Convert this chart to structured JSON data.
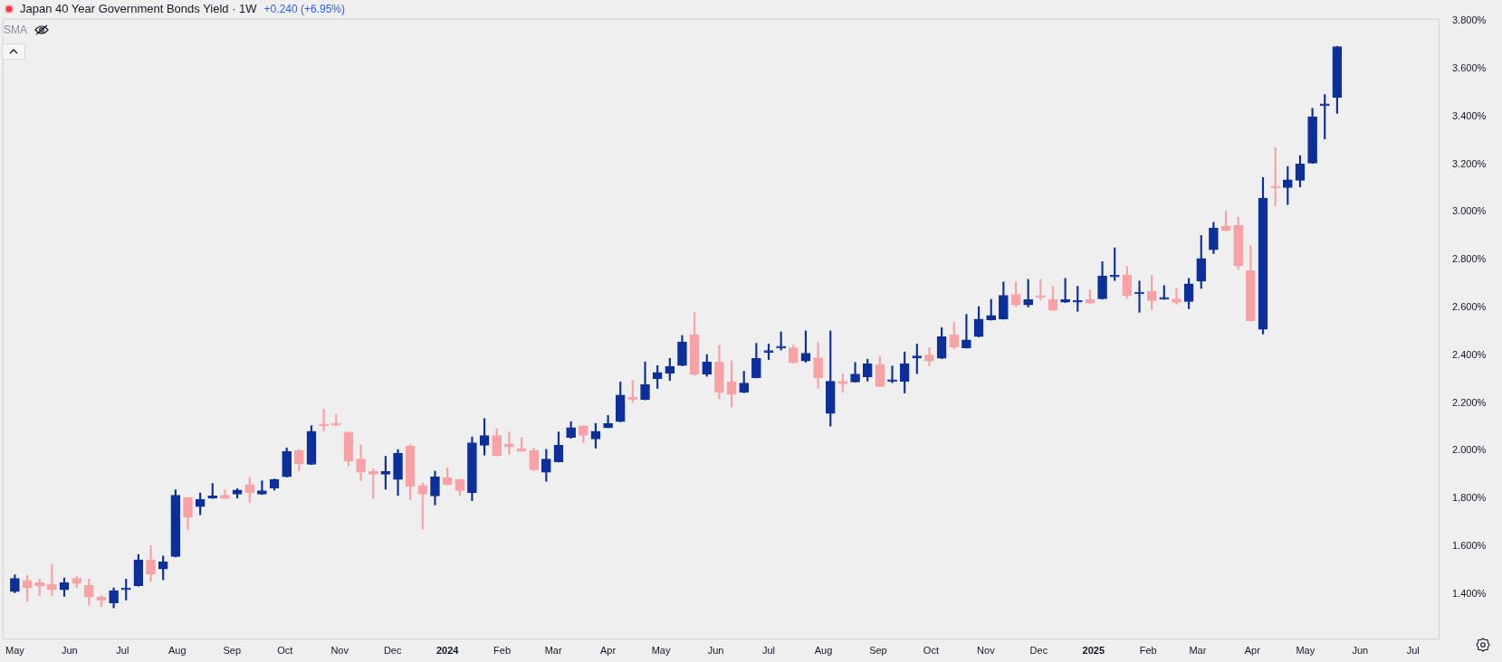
{
  "chart_data": {
    "type": "candlestick",
    "title": "Japan 40 Year Government Bonds Yield · 1W",
    "annotations": [
      "+0.240 (+6.95%)",
      "SMA"
    ],
    "x": [
      "2023-05-01",
      "2023-05-08",
      "2023-05-15",
      "2023-05-22",
      "2023-05-29",
      "2023-06-05",
      "2023-06-12",
      "2023-06-19",
      "2023-06-26",
      "2023-07-03",
      "2023-07-10",
      "2023-07-17",
      "2023-07-24",
      "2023-07-31",
      "2023-08-07",
      "2023-08-14",
      "2023-08-21",
      "2023-08-28",
      "2023-09-04",
      "2023-09-11",
      "2023-09-18",
      "2023-09-25",
      "2023-10-02",
      "2023-10-09",
      "2023-10-16",
      "2023-10-23",
      "2023-10-30",
      "2023-11-06",
      "2023-11-13",
      "2023-11-20",
      "2023-11-27",
      "2023-12-04",
      "2023-12-11",
      "2023-12-18",
      "2023-12-25",
      "2024-01-01",
      "2024-01-08",
      "2024-01-15",
      "2024-01-22",
      "2024-01-29",
      "2024-02-05",
      "2024-02-12",
      "2024-02-19",
      "2024-02-26",
      "2024-03-04",
      "2024-03-11",
      "2024-03-18",
      "2024-03-25",
      "2024-04-01",
      "2024-04-08",
      "2024-04-15",
      "2024-04-22",
      "2024-04-29",
      "2024-05-06",
      "2024-05-13",
      "2024-05-20",
      "2024-05-27",
      "2024-06-03",
      "2024-06-10",
      "2024-06-17",
      "2024-06-24",
      "2024-07-01",
      "2024-07-08",
      "2024-07-15",
      "2024-07-22",
      "2024-07-29",
      "2024-08-05",
      "2024-08-12",
      "2024-08-19",
      "2024-08-26",
      "2024-09-02",
      "2024-09-09",
      "2024-09-16",
      "2024-09-23",
      "2024-09-30",
      "2024-10-07",
      "2024-10-14",
      "2024-10-21",
      "2024-10-28",
      "2024-11-04",
      "2024-11-11",
      "2024-11-18",
      "2024-11-25",
      "2024-12-02",
      "2024-12-09",
      "2024-12-16",
      "2024-12-23",
      "2024-12-30",
      "2025-01-06",
      "2025-01-13",
      "2025-01-20",
      "2025-01-27",
      "2025-02-03",
      "2025-02-10",
      "2025-02-17",
      "2025-02-24",
      "2025-03-03",
      "2025-03-10",
      "2025-03-17",
      "2025-03-24",
      "2025-03-31",
      "2025-04-07",
      "2025-04-14",
      "2025-04-21",
      "2025-04-28",
      "2025-05-05",
      "2025-05-12",
      "2025-05-19"
    ],
    "ohlc": [
      [
        1.41,
        1.481,
        1.405,
        1.465
      ],
      [
        1.458,
        1.478,
        1.369,
        1.425
      ],
      [
        1.447,
        1.463,
        1.393,
        1.435
      ],
      [
        1.44,
        1.525,
        1.393,
        1.418
      ],
      [
        1.418,
        1.467,
        1.39,
        1.447
      ],
      [
        1.465,
        1.474,
        1.426,
        1.444
      ],
      [
        1.436,
        1.463,
        1.353,
        1.387
      ],
      [
        1.388,
        1.393,
        1.349,
        1.374
      ],
      [
        1.363,
        1.426,
        1.342,
        1.414
      ],
      [
        1.418,
        1.463,
        1.375,
        1.425
      ],
      [
        1.435,
        1.566,
        1.433,
        1.543
      ],
      [
        1.543,
        1.603,
        1.452,
        1.483
      ],
      [
        1.505,
        1.559,
        1.459,
        1.535
      ],
      [
        1.557,
        1.837,
        1.555,
        1.814
      ],
      [
        1.803,
        1.805,
        1.67,
        1.722
      ],
      [
        1.766,
        1.823,
        1.732,
        1.796
      ],
      [
        1.801,
        1.863,
        1.8,
        1.811
      ],
      [
        1.814,
        1.837,
        1.799,
        1.8
      ],
      [
        1.818,
        1.841,
        1.802,
        1.836
      ],
      [
        1.858,
        1.889,
        1.784,
        1.825
      ],
      [
        1.818,
        1.874,
        1.817,
        1.833
      ],
      [
        1.844,
        1.882,
        1.835,
        1.88
      ],
      [
        1.891,
        2.012,
        1.89,
        1.998
      ],
      [
        2.001,
        2.005,
        1.916,
        1.946
      ],
      [
        1.943,
        2.105,
        1.942,
        2.082
      ],
      [
        2.111,
        2.175,
        2.083,
        2.104
      ],
      [
        2.108,
        2.153,
        2.103,
        2.107
      ],
      [
        2.078,
        2.079,
        1.937,
        1.957
      ],
      [
        1.965,
        2.025,
        1.874,
        1.91
      ],
      [
        1.913,
        1.924,
        1.802,
        1.902
      ],
      [
        1.902,
        1.977,
        1.839,
        1.913
      ],
      [
        1.88,
        2.005,
        1.813,
        1.99
      ],
      [
        2.02,
        2.025,
        1.795,
        1.851
      ],
      [
        1.855,
        1.866,
        1.672,
        1.818
      ],
      [
        1.811,
        1.915,
        1.773,
        1.891
      ],
      [
        1.888,
        1.929,
        1.857,
        1.858
      ],
      [
        1.88,
        1.881,
        1.813,
        1.833
      ],
      [
        1.825,
        2.058,
        1.791,
        2.034
      ],
      [
        2.023,
        2.135,
        1.982,
        2.064
      ],
      [
        2.064,
        2.093,
        1.978,
        1.979
      ],
      [
        2.027,
        2.079,
        1.985,
        2.016
      ],
      [
        2.009,
        2.056,
        1.997,
        1.998
      ],
      [
        2.001,
        2.012,
        1.916,
        1.921
      ],
      [
        1.91,
        2.006,
        1.872,
        1.965
      ],
      [
        1.954,
        2.079,
        1.953,
        2.023
      ],
      [
        2.056,
        2.122,
        2.052,
        2.097
      ],
      [
        2.104,
        2.105,
        2.033,
        2.064
      ],
      [
        2.049,
        2.115,
        2.011,
        2.082
      ],
      [
        2.097,
        2.148,
        2.096,
        2.114
      ],
      [
        2.122,
        2.288,
        2.121,
        2.233
      ],
      [
        2.225,
        2.295,
        2.203,
        2.214
      ],
      [
        2.214,
        2.372,
        2.213,
        2.277
      ],
      [
        2.302,
        2.357,
        2.261,
        2.328
      ],
      [
        2.324,
        2.387,
        2.294,
        2.354
      ],
      [
        2.357,
        2.483,
        2.356,
        2.456
      ],
      [
        2.486,
        2.579,
        2.316,
        2.321
      ],
      [
        2.321,
        2.403,
        2.312,
        2.372
      ],
      [
        2.372,
        2.443,
        2.217,
        2.244
      ],
      [
        2.288,
        2.377,
        2.184,
        2.236
      ],
      [
        2.244,
        2.333,
        2.243,
        2.284
      ],
      [
        2.306,
        2.45,
        2.305,
        2.387
      ],
      [
        2.412,
        2.447,
        2.382,
        2.42
      ],
      [
        2.43,
        2.498,
        2.422,
        2.436
      ],
      [
        2.431,
        2.443,
        2.367,
        2.368
      ],
      [
        2.376,
        2.502,
        2.371,
        2.409
      ],
      [
        2.39,
        2.454,
        2.261,
        2.306
      ],
      [
        2.156,
        2.502,
        2.103,
        2.291
      ],
      [
        2.291,
        2.322,
        2.246,
        2.28
      ],
      [
        2.288,
        2.37,
        2.287,
        2.321
      ],
      [
        2.31,
        2.384,
        2.292,
        2.365
      ],
      [
        2.361,
        2.395,
        2.268,
        2.269
      ],
      [
        2.29,
        2.355,
        2.285,
        2.291
      ],
      [
        2.291,
        2.414,
        2.242,
        2.365
      ],
      [
        2.388,
        2.447,
        2.323,
        2.397
      ],
      [
        2.401,
        2.432,
        2.356,
        2.376
      ],
      [
        2.387,
        2.516,
        2.386,
        2.478
      ],
      [
        2.486,
        2.538,
        2.426,
        2.434
      ],
      [
        2.431,
        2.571,
        2.43,
        2.464
      ],
      [
        2.478,
        2.604,
        2.477,
        2.552
      ],
      [
        2.548,
        2.634,
        2.547,
        2.567
      ],
      [
        2.552,
        2.707,
        2.551,
        2.651
      ],
      [
        2.655,
        2.707,
        2.604,
        2.611
      ],
      [
        2.611,
        2.718,
        2.602,
        2.633
      ],
      [
        2.645,
        2.718,
        2.631,
        2.642
      ],
      [
        2.633,
        2.689,
        2.588,
        2.589
      ],
      [
        2.622,
        2.722,
        2.621,
        2.633
      ],
      [
        2.622,
        2.689,
        2.584,
        2.629
      ],
      [
        2.633,
        2.674,
        2.617,
        2.618
      ],
      [
        2.636,
        2.792,
        2.635,
        2.732
      ],
      [
        2.728,
        2.85,
        2.713,
        2.735
      ],
      [
        2.735,
        2.773,
        2.639,
        2.651
      ],
      [
        2.657,
        2.711,
        2.58,
        2.66
      ],
      [
        2.669,
        2.736,
        2.591,
        2.629
      ],
      [
        2.635,
        2.692,
        2.634,
        2.637
      ],
      [
        2.636,
        2.681,
        2.614,
        2.621
      ],
      [
        2.625,
        2.722,
        2.595,
        2.699
      ],
      [
        2.71,
        2.902,
        2.68,
        2.805
      ],
      [
        2.842,
        2.957,
        2.826,
        2.933
      ],
      [
        2.941,
        3.004,
        2.921,
        2.922
      ],
      [
        2.944,
        2.979,
        2.761,
        2.776
      ],
      [
        2.754,
        2.858,
        2.543,
        2.544
      ],
      [
        2.509,
        3.144,
        2.489,
        3.058
      ],
      [
        3.103,
        3.269,
        3.025,
        3.101
      ],
      [
        3.102,
        3.191,
        3.031,
        3.135
      ],
      [
        3.133,
        3.236,
        3.105,
        3.201
      ],
      [
        3.205,
        3.434,
        3.204,
        3.399
      ],
      [
        3.445,
        3.492,
        3.306,
        3.453
      ],
      [
        3.48,
        3.694,
        3.413,
        3.693
      ]
    ],
    "colors": [
      "#0d2f99",
      "#f8a2a6",
      "#f8a2a6",
      "#f8a2a6",
      "#0d2f99",
      "#f8a2a6",
      "#f8a2a6",
      "#f8a2a6",
      "#0d2f99",
      "#0d2f99",
      "#0d2f99",
      "#f8a2a6",
      "#0d2f99",
      "#0d2f99",
      "#f8a2a6",
      "#0d2f99",
      "#0d2f99",
      "#f8a2a6",
      "#0d2f99",
      "#f8a2a6",
      "#0d2f99",
      "#0d2f99",
      "#0d2f99",
      "#f8a2a6",
      "#0d2f99",
      "#f8a2a6",
      "#f8a2a6",
      "#f8a2a6",
      "#f8a2a6",
      "#f8a2a6",
      "#0d2f99",
      "#0d2f99",
      "#f8a2a6",
      "#f8a2a6",
      "#0d2f99",
      "#f8a2a6",
      "#f8a2a6",
      "#0d2f99",
      "#0d2f99",
      "#f8a2a6",
      "#f8a2a6",
      "#f8a2a6",
      "#f8a2a6",
      "#0d2f99",
      "#0d2f99",
      "#0d2f99",
      "#f8a2a6",
      "#0d2f99",
      "#0d2f99",
      "#0d2f99",
      "#f8a2a6",
      "#0d2f99",
      "#0d2f99",
      "#0d2f99",
      "#0d2f99",
      "#f8a2a6",
      "#0d2f99",
      "#f8a2a6",
      "#f8a2a6",
      "#0d2f99",
      "#0d2f99",
      "#0d2f99",
      "#0d2f99",
      "#f8a2a6",
      "#0d2f99",
      "#f8a2a6",
      "#0d2f99",
      "#f8a2a6",
      "#0d2f99",
      "#0d2f99",
      "#f8a2a6",
      "#0d2f99",
      "#0d2f99",
      "#0d2f99",
      "#f8a2a6",
      "#0d2f99",
      "#f8a2a6",
      "#0d2f99",
      "#0d2f99",
      "#0d2f99",
      "#0d2f99",
      "#f8a2a6",
      "#0d2f99",
      "#f8a2a6",
      "#f8a2a6",
      "#0d2f99",
      "#0d2f99",
      "#f8a2a6",
      "#0d2f99",
      "#0d2f99",
      "#f8a2a6",
      "#0d2f99",
      "#f8a2a6",
      "#0d2f99",
      "#f8a2a6",
      "#0d2f99",
      "#0d2f99",
      "#0d2f99",
      "#f8a2a6",
      "#f8a2a6",
      "#f8a2a6",
      "#0d2f99",
      "#f8a2a6",
      "#0d2f99",
      "#0d2f99",
      "#0d2f99",
      "#0d2f99",
      "#0d2f99"
    ],
    "xlim": [
      "2023-04-24",
      "2025-07-16"
    ],
    "xticks": [
      {
        "value": "2023-05-01",
        "label": "May"
      },
      {
        "value": "2023-06-01",
        "label": "Jun"
      },
      {
        "value": "2023-07-01",
        "label": "Jul"
      },
      {
        "value": "2023-08-01",
        "label": "Aug"
      },
      {
        "value": "2023-09-01",
        "label": "Sep"
      },
      {
        "value": "2023-10-01",
        "label": "Oct"
      },
      {
        "value": "2023-11-01",
        "label": "Nov"
      },
      {
        "value": "2023-12-01",
        "label": "Dec"
      },
      {
        "value": "2024-01-01",
        "label": "2024"
      },
      {
        "value": "2024-02-01",
        "label": "Feb"
      },
      {
        "value": "2024-03-01",
        "label": "Mar"
      },
      {
        "value": "2024-04-01",
        "label": "Apr"
      },
      {
        "value": "2024-05-01",
        "label": "May"
      },
      {
        "value": "2024-06-01",
        "label": "Jun"
      },
      {
        "value": "2024-07-01",
        "label": "Jul"
      },
      {
        "value": "2024-08-01",
        "label": "Aug"
      },
      {
        "value": "2024-09-01",
        "label": "Sep"
      },
      {
        "value": "2024-10-01",
        "label": "Oct"
      },
      {
        "value": "2024-11-01",
        "label": "Nov"
      },
      {
        "value": "2024-12-01",
        "label": "Dec"
      },
      {
        "value": "2025-01-01",
        "label": "2025"
      },
      {
        "value": "2025-02-01",
        "label": "Feb"
      },
      {
        "value": "2025-03-01",
        "label": "Mar"
      },
      {
        "value": "2025-04-01",
        "label": "Apr"
      },
      {
        "value": "2025-05-01",
        "label": "May"
      },
      {
        "value": "2025-06-01",
        "label": "Jun"
      },
      {
        "value": "2025-07-01",
        "label": "Jul"
      }
    ],
    "ylim": [
      1.21,
      3.81
    ],
    "yticks": [
      {
        "value": 1.4,
        "label": "1.400%"
      },
      {
        "value": 1.6,
        "label": "1.600%"
      },
      {
        "value": 1.8,
        "label": "1.800%"
      },
      {
        "value": 2.0,
        "label": "2.000%"
      },
      {
        "value": 2.2,
        "label": "2.200%"
      },
      {
        "value": 2.4,
        "label": "2.400%"
      },
      {
        "value": 2.6,
        "label": "2.600%"
      },
      {
        "value": 2.8,
        "label": "2.800%"
      },
      {
        "value": 3.0,
        "label": "3.000%"
      },
      {
        "value": 3.2,
        "label": "3.200%"
      },
      {
        "value": 3.4,
        "label": "3.400%"
      },
      {
        "value": 3.6,
        "label": "3.600%"
      },
      {
        "value": 3.8,
        "label": "3.800%"
      }
    ],
    "grid": false,
    "legend": false
  }
}
